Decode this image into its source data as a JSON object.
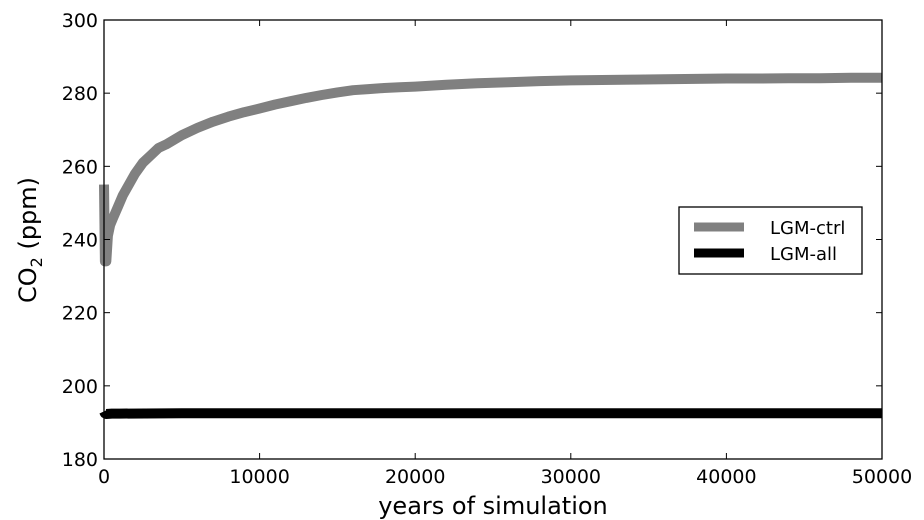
{
  "chart_data": {
    "type": "line",
    "xlabel": "years of simulation",
    "ylabel": {
      "main": "CO",
      "subscript": "2",
      "unit": " (ppm)"
    },
    "xlim": [
      0,
      50000
    ],
    "ylim": [
      180,
      300
    ],
    "xticks": [
      0,
      10000,
      20000,
      30000,
      40000,
      50000
    ],
    "yticks": [
      180,
      200,
      220,
      240,
      260,
      280,
      300
    ],
    "grid": false,
    "legend_position": "center-right",
    "series": [
      {
        "name": "LGM-ctrl",
        "color": "#808080",
        "x": [
          0,
          60,
          150,
          250,
          400,
          600,
          900,
          1200,
          1600,
          2000,
          2500,
          3000,
          3500,
          4000,
          5000,
          6000,
          7000,
          8000,
          9000,
          10000,
          11000,
          12000,
          13000,
          14000,
          15000,
          16000,
          17000,
          18000,
          19000,
          20000,
          22000,
          24000,
          26000,
          28000,
          30000,
          32000,
          34000,
          36000,
          38000,
          40000,
          42000,
          44000,
          46000,
          48000,
          50000
        ],
        "y": [
          255,
          234,
          234,
          241,
          244,
          246,
          249,
          252,
          255,
          258,
          261,
          263,
          265,
          266,
          268.5,
          270.5,
          272.2,
          273.6,
          274.8,
          275.8,
          276.9,
          277.8,
          278.7,
          279.5,
          280.2,
          280.8,
          281.1,
          281.4,
          281.6,
          281.8,
          282.3,
          282.7,
          283.0,
          283.3,
          283.5,
          283.6,
          283.7,
          283.8,
          283.9,
          284.0,
          284.0,
          284.1,
          284.1,
          284.2,
          284.2
        ]
      },
      {
        "name": "LGM-all",
        "color": "#000000",
        "x": [
          0,
          60,
          150,
          500,
          1000,
          5000,
          10000,
          15000,
          20000,
          25000,
          30000,
          35000,
          40000,
          45000,
          50000
        ],
        "y": [
          193,
          192.5,
          192.3,
          192.4,
          192.4,
          192.5,
          192.5,
          192.5,
          192.5,
          192.5,
          192.5,
          192.5,
          192.5,
          192.5,
          192.5
        ]
      }
    ]
  }
}
